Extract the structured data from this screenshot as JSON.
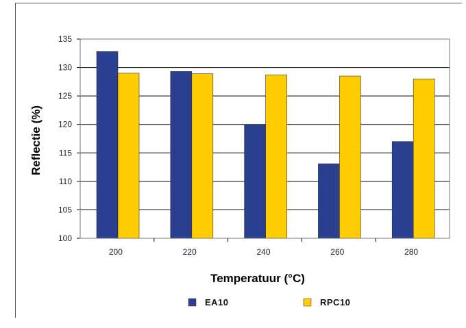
{
  "chart_data": {
    "type": "bar",
    "title": "",
    "xlabel": "Temperatuur (°C)",
    "ylabel": "Reflectie (%)",
    "categories": [
      "200",
      "220",
      "240",
      "260",
      "280"
    ],
    "ylim": [
      100,
      135
    ],
    "yticks": [
      100,
      105,
      110,
      115,
      120,
      125,
      130,
      135
    ],
    "grid": true,
    "legend_position": "bottom",
    "series": [
      {
        "name": "EA10",
        "values": [
          132.8,
          129.3,
          120.0,
          113.1,
          117.0
        ],
        "color": "#2a3f8f"
      },
      {
        "name": "RPC10",
        "values": [
          129.0,
          128.9,
          128.7,
          128.5,
          128.0
        ],
        "color": "#ffcc00"
      }
    ],
    "plot_background": "#ffffff",
    "grid_color": "#000000"
  }
}
